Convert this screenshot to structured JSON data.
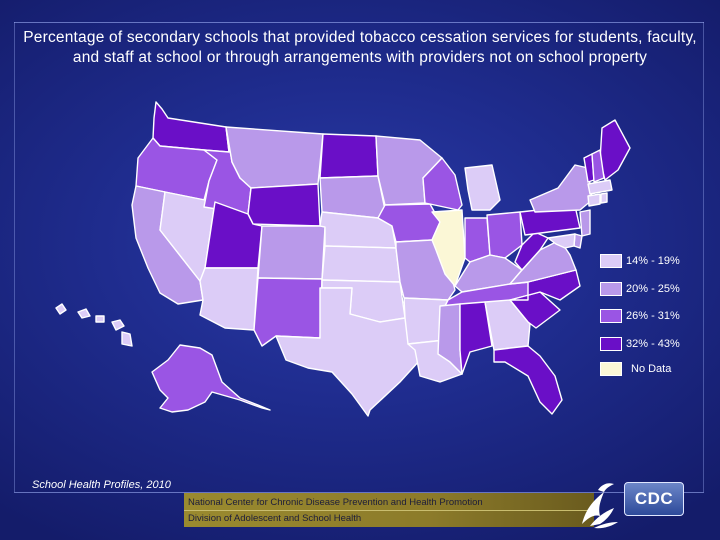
{
  "title": "Percentage of secondary schools that provided tobacco cessation services for students, faculty, and staff at school or through arrangements with providers not on school property",
  "legend": [
    {
      "label": "14% - 19%",
      "color": "#dcccf7"
    },
    {
      "label": "20% - 25%",
      "color": "#b999ea"
    },
    {
      "label": "26% - 31%",
      "color": "#9a55e4"
    },
    {
      "label": "32% - 43%",
      "color": "#6a0fc7"
    },
    {
      "label": "No Data",
      "color": "#fbf7d6"
    }
  ],
  "bins": {
    "WA": 3,
    "OR": 2,
    "CA": 1,
    "NV": 0,
    "ID": 2,
    "MT": 1,
    "WY": 3,
    "UT": 3,
    "AZ": 0,
    "CO": 1,
    "NM": 2,
    "ND": 3,
    "SD": 1,
    "NE": 0,
    "KS": 0,
    "OK": 0,
    "TX": 0,
    "MN": 1,
    "IA": 2,
    "MO": 1,
    "AR": 0,
    "LA": 0,
    "WI": 2,
    "IL": 4,
    "MI": 0,
    "IN": 2,
    "OH": 2,
    "KY": 1,
    "TN": 2,
    "MS": 1,
    "AL": 3,
    "GA": 0,
    "FL": 3,
    "SC": 3,
    "NC": 3,
    "VA": 1,
    "WV": 3,
    "PA": 3,
    "NY": 1,
    "ME": 3,
    "VT": 3,
    "NH": 2,
    "MA": 0,
    "CT": 0,
    "RI": 0,
    "NJ": 1,
    "DE": 1,
    "MD": 0,
    "AK": 2,
    "HI": 0
  },
  "source": "School Health Profiles, 2010",
  "footer": {
    "line1": "National Center for Chronic Disease Prevention and Health Promotion",
    "line2": "Division of Adolescent and School Health"
  },
  "logos": {
    "hhs_icon": "hhs-eagle-icon",
    "cdc_text": "CDC"
  }
}
